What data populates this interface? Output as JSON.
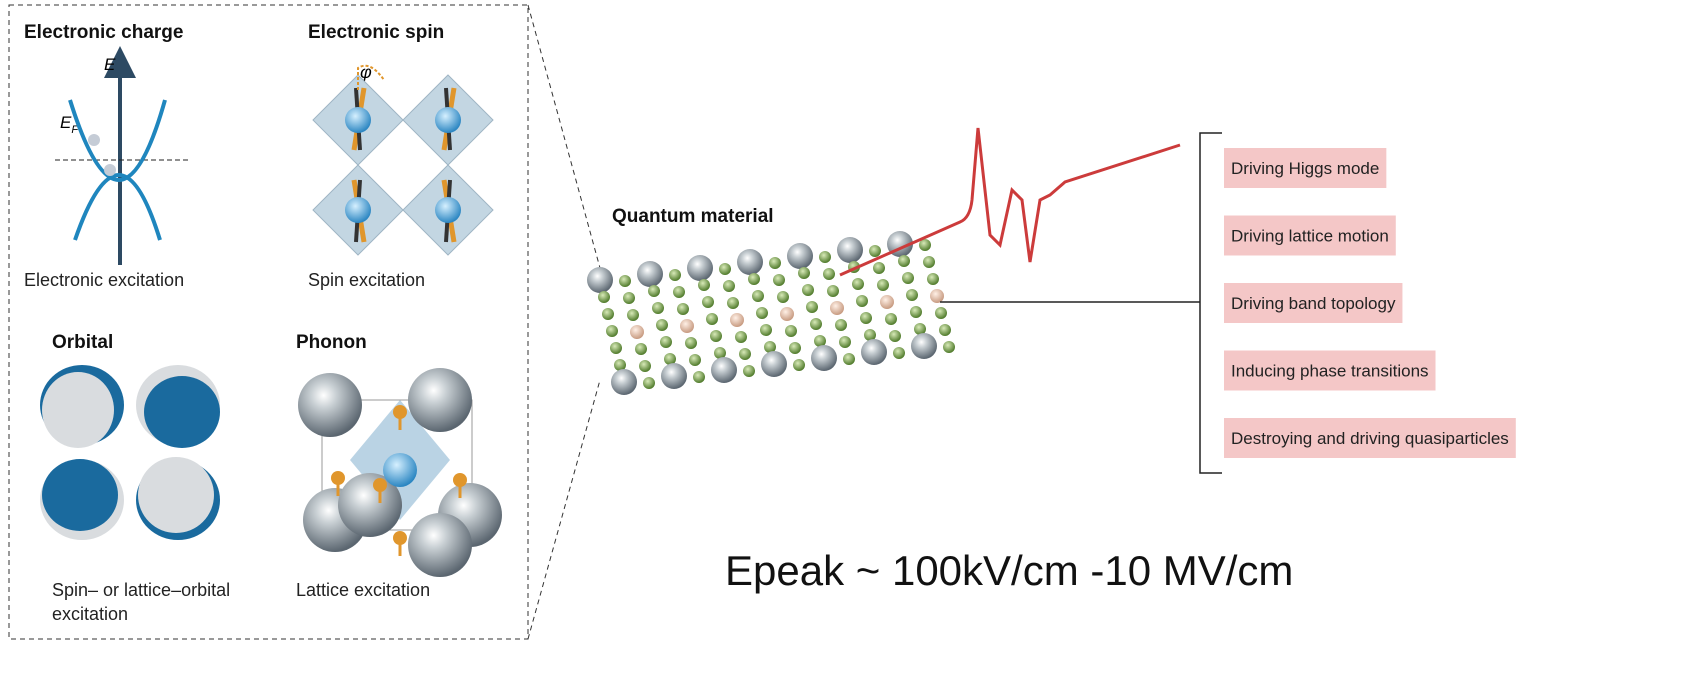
{
  "panels": [
    {
      "title": "Electronic charge",
      "axis_label": "E",
      "fermi_label": {
        "main": "E",
        "sub": "F"
      },
      "caption": [
        "Electronic excitation"
      ]
    },
    {
      "title": "Electronic spin",
      "angle_label": "φ",
      "caption": [
        "Spin excitation"
      ]
    },
    {
      "title": "Orbital",
      "caption": [
        "Spin– or lattice–orbital",
        "excitation"
      ]
    },
    {
      "title": "Phonon",
      "caption": [
        "Lattice excitation"
      ]
    }
  ],
  "material": {
    "label": "Quantum material"
  },
  "effects": [
    "Driving Higgs mode",
    "Driving lattice motion",
    "Driving band topology",
    "Inducing phase transitions",
    "Destroying and driving quasiparticles"
  ],
  "field_note": "Epeak ~ 100kV/cm -10 MV/cm"
}
